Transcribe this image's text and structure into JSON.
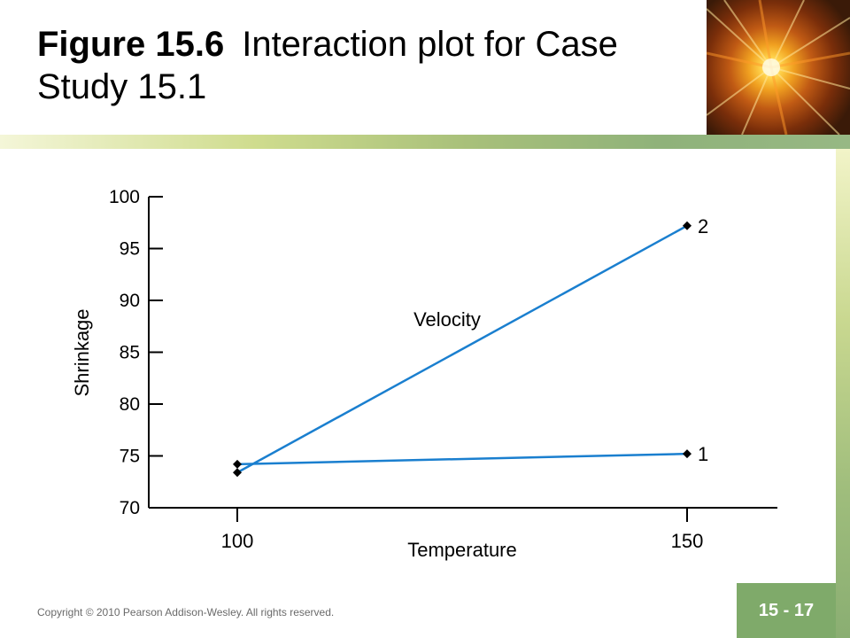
{
  "slide": {
    "title_bold": "Figure 15.6",
    "title_rest": "Interaction plot for Case Study 15.1",
    "copyright": "Copyright © 2010 Pearson Addison-Wesley. All rights reserved.",
    "page_number": "15 - 17"
  },
  "colors": {
    "line": "#1a7fcf",
    "band": "#a8c07a",
    "badge": "#7faa6a"
  },
  "chart_data": {
    "type": "line",
    "title": "",
    "xlabel": "Temperature",
    "ylabel": "Shrinkage",
    "categories": [
      "100",
      "150"
    ],
    "ylim": [
      70,
      100
    ],
    "yticks": [
      70,
      75,
      80,
      85,
      90,
      95,
      100
    ],
    "legend_title": "Velocity",
    "grid": false,
    "series": [
      {
        "name": "1",
        "values": [
          74.2,
          75.2
        ]
      },
      {
        "name": "2",
        "values": [
          73.4,
          97.2
        ]
      }
    ]
  }
}
